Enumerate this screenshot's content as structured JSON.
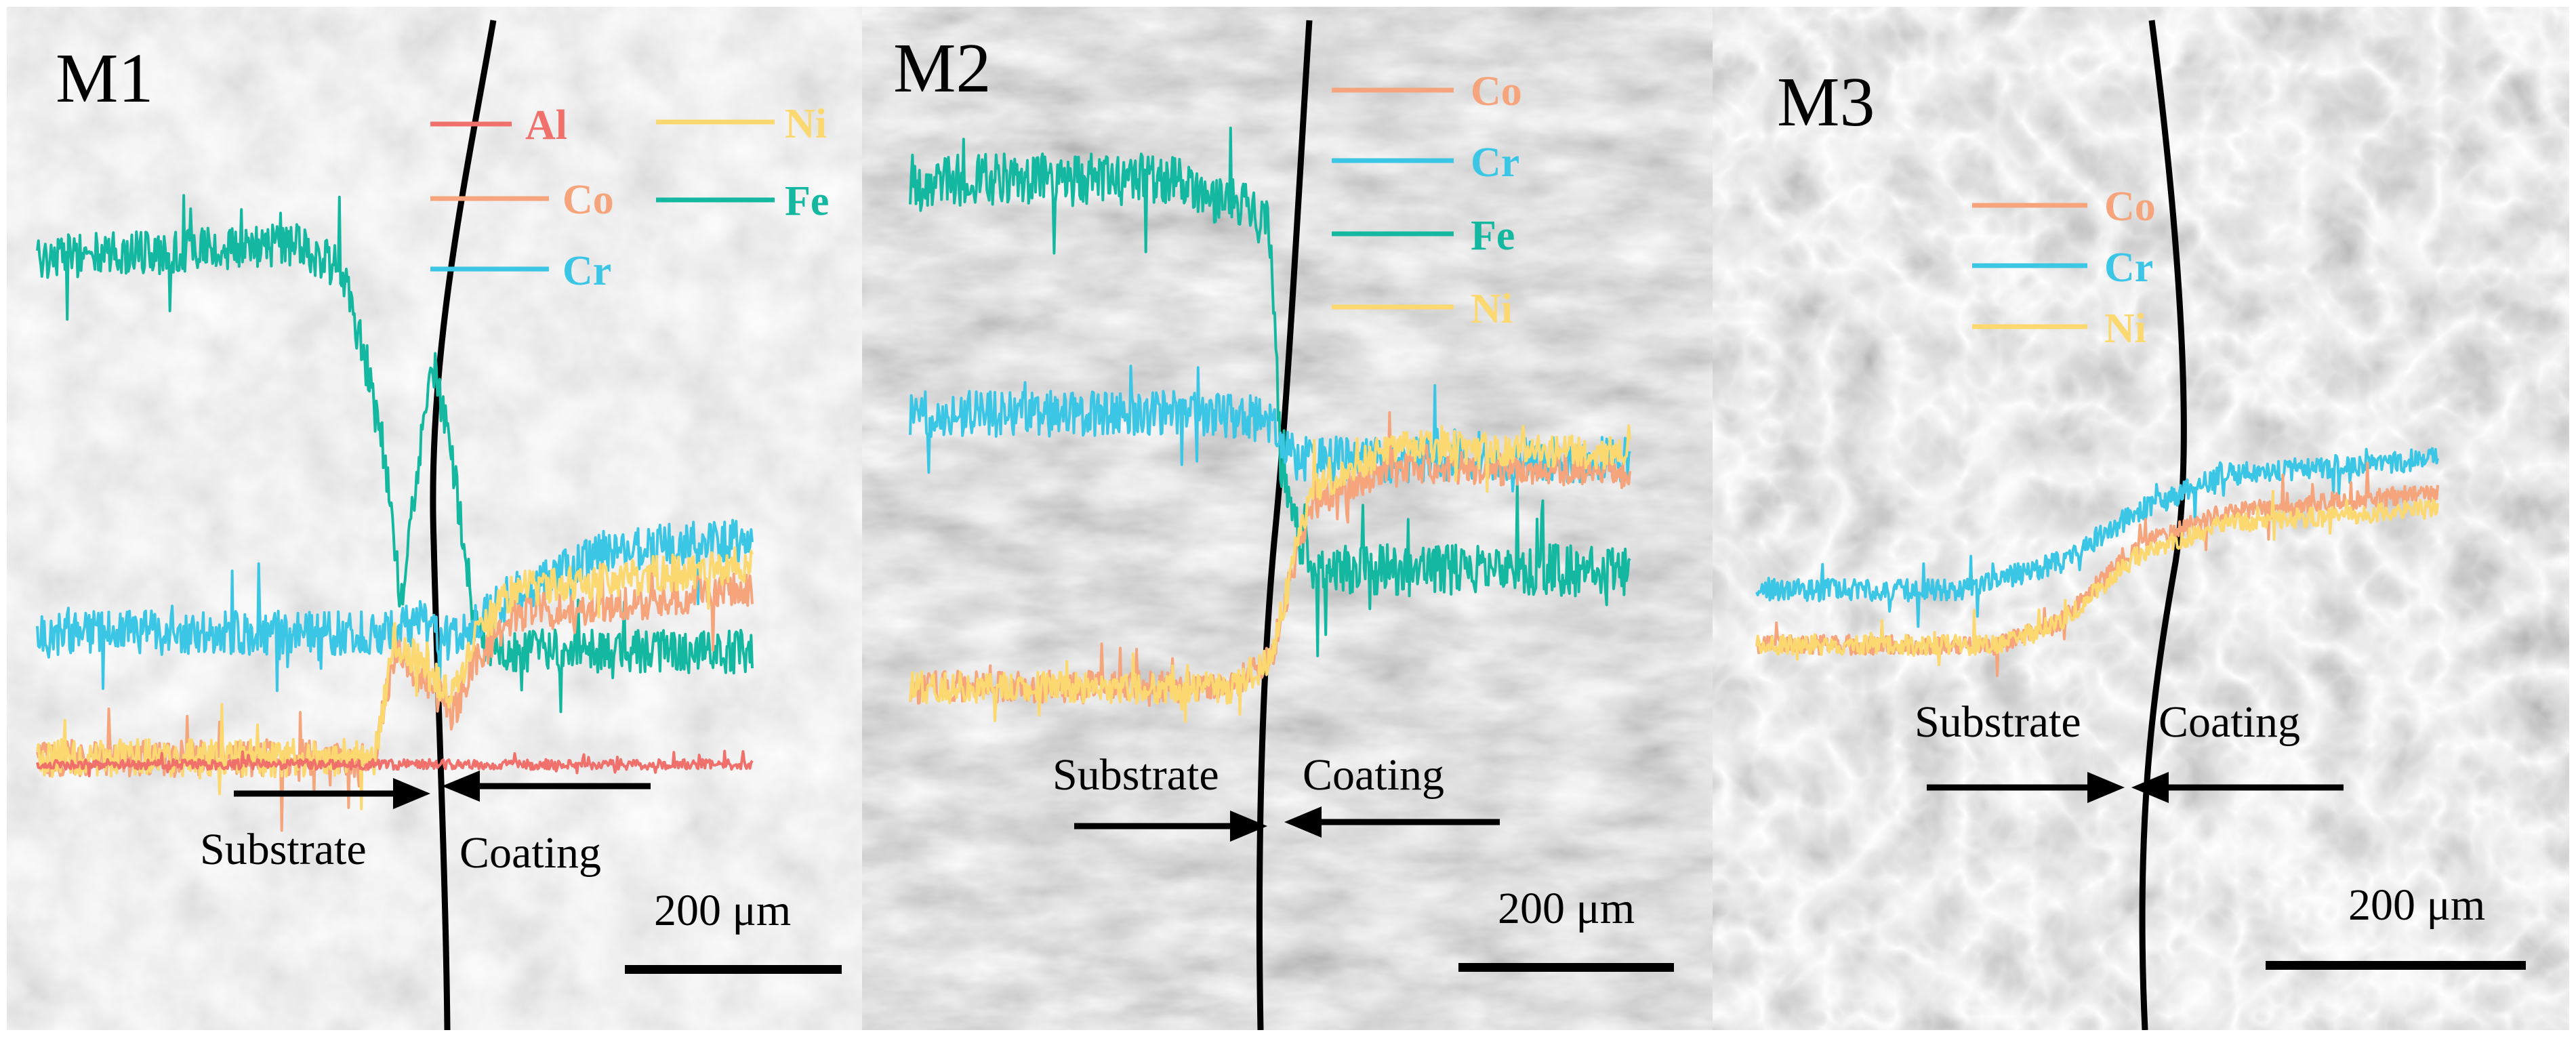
{
  "colors": {
    "Al": "#f0706c",
    "Co": "#f6a47c",
    "Cr": "#3cc6e6",
    "Fe": "#14b8a0",
    "Ni": "#fcd970",
    "interface": "#000000",
    "annotation": "#000000"
  },
  "chart_data": [
    {
      "type": "line",
      "panel": "M1",
      "title": "M1",
      "xlabel": "",
      "ylabel": "",
      "legend": {
        "placement": "top-right",
        "entries": [
          "Al",
          "Ni",
          "Co",
          "Fe",
          "Cr"
        ]
      },
      "annotations": {
        "left": "Substrate",
        "right": "Coating",
        "scale_bar": "200 μm"
      },
      "x_unit": "μm",
      "x_range": [
        0,
        540
      ],
      "interface_x": 290,
      "y_range": [
        0,
        100
      ],
      "series": [
        {
          "name": "Fe",
          "points": [
            [
              0,
              85
            ],
            [
              120,
              86
            ],
            [
              195,
              87
            ],
            [
              230,
              83
            ],
            [
              258,
              60
            ],
            [
              275,
              30
            ],
            [
              290,
              55
            ],
            [
              300,
              68
            ],
            [
              315,
              50
            ],
            [
              328,
              30
            ],
            [
              340,
              22
            ],
            [
              540,
              22
            ]
          ],
          "noise": 3.5
        },
        {
          "name": "Cr",
          "points": [
            [
              0,
              25
            ],
            [
              270,
              25
            ],
            [
              290,
              27
            ],
            [
              310,
              24
            ],
            [
              350,
              30
            ],
            [
              430,
              38
            ],
            [
              540,
              40
            ]
          ],
          "noise": 3.5
        },
        {
          "name": "Co",
          "points": [
            [
              0,
              5
            ],
            [
              255,
              5
            ],
            [
              270,
              22
            ],
            [
              290,
              18
            ],
            [
              315,
              12
            ],
            [
              330,
              20
            ],
            [
              360,
              28
            ],
            [
              540,
              32
            ]
          ],
          "noise": 3
        },
        {
          "name": "Ni",
          "points": [
            [
              0,
              5
            ],
            [
              255,
              5
            ],
            [
              270,
              24
            ],
            [
              290,
              20
            ],
            [
              315,
              15
            ],
            [
              330,
              24
            ],
            [
              360,
              32
            ],
            [
              540,
              36
            ]
          ],
          "noise": 3
        },
        {
          "name": "Al",
          "points": [
            [
              0,
              4
            ],
            [
              540,
              4
            ]
          ],
          "noise": 0.8
        }
      ]
    },
    {
      "type": "line",
      "panel": "M2",
      "title": "M2",
      "xlabel": "",
      "ylabel": "",
      "legend": {
        "placement": "top-right",
        "entries": [
          "Co",
          "Cr",
          "Fe",
          "Ni"
        ]
      },
      "annotations": {
        "left": "Substrate",
        "right": "Coating",
        "scale_bar": "200 μm"
      },
      "x_unit": "μm",
      "x_range": [
        0,
        540
      ],
      "interface_x": 280,
      "y_range": [
        0,
        100
      ],
      "series": [
        {
          "name": "Fe",
          "points": [
            [
              0,
              88
            ],
            [
              190,
              88
            ],
            [
              250,
              84
            ],
            [
              270,
              80
            ],
            [
              278,
              45
            ],
            [
              300,
              28
            ],
            [
              540,
              28
            ]
          ],
          "noise": 4
        },
        {
          "name": "Cr",
          "points": [
            [
              0,
              52
            ],
            [
              230,
              52
            ],
            [
              270,
              51
            ],
            [
              290,
              45
            ],
            [
              540,
              45
            ]
          ],
          "noise": 3.5
        },
        {
          "name": "Co",
          "points": [
            [
              0,
              10
            ],
            [
              240,
              10
            ],
            [
              270,
              14
            ],
            [
              300,
              38
            ],
            [
              360,
              44
            ],
            [
              540,
              43
            ]
          ],
          "noise": 2.5
        },
        {
          "name": "Ni",
          "points": [
            [
              0,
              10
            ],
            [
              240,
              10
            ],
            [
              270,
              14
            ],
            [
              300,
              40
            ],
            [
              360,
              47
            ],
            [
              540,
              46
            ]
          ],
          "noise": 2.5
        }
      ]
    },
    {
      "type": "line",
      "panel": "M3",
      "title": "M3",
      "xlabel": "",
      "ylabel": "",
      "legend": {
        "placement": "top-center",
        "entries": [
          "Co",
          "Cr",
          "Ni"
        ]
      },
      "annotations": {
        "left": "Substrate",
        "right": "Coating",
        "scale_bar": "200 μm"
      },
      "x_unit": "μm",
      "x_range": [
        0,
        540
      ],
      "interface_x": 300,
      "y_range": [
        0,
        100
      ],
      "series": [
        {
          "name": "Cr",
          "points": [
            [
              0,
              32
            ],
            [
              160,
              32
            ],
            [
              240,
              37
            ],
            [
              300,
              46
            ],
            [
              370,
              53
            ],
            [
              540,
              56
            ]
          ],
          "noise": 2
        },
        {
          "name": "Co",
          "points": [
            [
              0,
              22
            ],
            [
              190,
              22
            ],
            [
              240,
              26
            ],
            [
              300,
              40
            ],
            [
              370,
              46
            ],
            [
              540,
              50
            ]
          ],
          "noise": 1.8
        },
        {
          "name": "Ni",
          "points": [
            [
              0,
              22
            ],
            [
              190,
              22
            ],
            [
              240,
              26
            ],
            [
              300,
              38
            ],
            [
              370,
              44
            ],
            [
              540,
              47
            ]
          ],
          "noise": 1.8
        }
      ]
    }
  ]
}
